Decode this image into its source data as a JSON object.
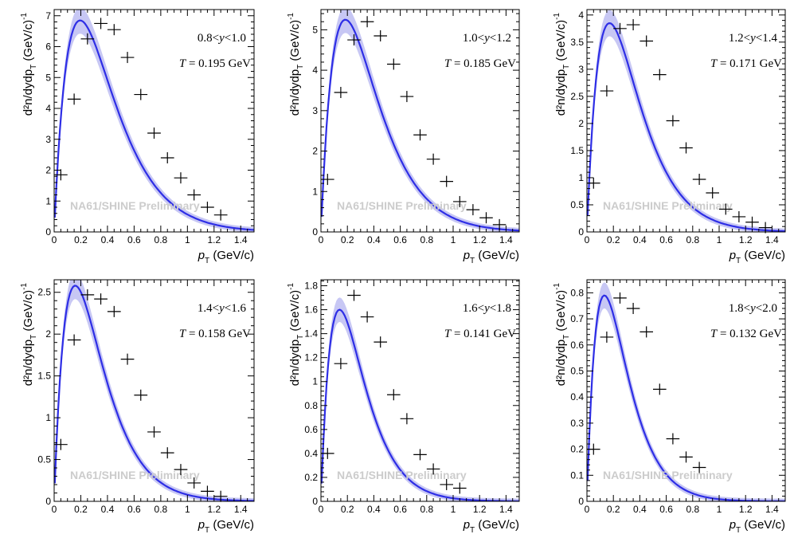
{
  "figure": {
    "watermark": "NA61/SHINE Preliminary",
    "xlabel_main": "p",
    "xlabel_sub": "T",
    "xlabel_unit": "(GeV/c)",
    "ylabel_main": "d²n/dydp",
    "ylabel_sub": "T",
    "ylabel_unit": "(GeV/c)",
    "ylabel_exp": "-1",
    "colors": {
      "fit": "#2e2ee6",
      "band": "#b4b4f0",
      "points": "#000000",
      "watermark": "#cccccc"
    }
  },
  "chart_data": [
    {
      "type": "scatter",
      "rapidity_label": "0.8<y<1.0",
      "temperature_label": "T = 0.195 GeV",
      "xlim": [
        0,
        1.5
      ],
      "ylim": [
        0,
        7.2
      ],
      "xticks": [
        0,
        0.2,
        0.4,
        0.6,
        0.8,
        1,
        1.2,
        1.4
      ],
      "yticks": [
        0,
        1,
        2,
        3,
        4,
        5,
        6,
        7
      ],
      "points_x": [
        0.05,
        0.15,
        0.25,
        0.35,
        0.45,
        0.55,
        0.65,
        0.75,
        0.85,
        0.95,
        1.05,
        1.15,
        1.25
      ],
      "points_y": [
        1.85,
        4.3,
        6.25,
        6.75,
        6.55,
        5.65,
        4.45,
        3.2,
        2.4,
        1.75,
        1.2,
        0.8,
        0.55
      ],
      "fit_T": 0.195,
      "fit_peak_y": 6.85
    },
    {
      "type": "scatter",
      "rapidity_label": "1.0<y<1.2",
      "temperature_label": "T = 0.185 GeV",
      "xlim": [
        0,
        1.5
      ],
      "ylim": [
        0,
        5.5
      ],
      "xticks": [
        0,
        0.2,
        0.4,
        0.6,
        0.8,
        1,
        1.2,
        1.4
      ],
      "yticks": [
        0,
        1,
        2,
        3,
        4,
        5
      ],
      "points_x": [
        0.05,
        0.15,
        0.25,
        0.35,
        0.45,
        0.55,
        0.65,
        0.75,
        0.85,
        0.95,
        1.05,
        1.15,
        1.25,
        1.35
      ],
      "points_y": [
        1.3,
        3.45,
        4.75,
        5.2,
        4.85,
        4.15,
        3.35,
        2.4,
        1.8,
        1.25,
        0.75,
        0.55,
        0.35,
        0.18
      ],
      "fit_T": 0.185,
      "fit_peak_y": 5.25
    },
    {
      "type": "scatter",
      "rapidity_label": "1.2<y<1.4",
      "temperature_label": "T = 0.171 GeV",
      "xlim": [
        0,
        1.5
      ],
      "ylim": [
        0,
        4.1
      ],
      "xticks": [
        0,
        0.2,
        0.4,
        0.6,
        0.8,
        1,
        1.2,
        1.4
      ],
      "yticks": [
        0,
        0.5,
        1,
        1.5,
        2,
        2.5,
        3,
        3.5,
        4
      ],
      "points_x": [
        0.05,
        0.15,
        0.25,
        0.35,
        0.45,
        0.55,
        0.65,
        0.75,
        0.85,
        0.95,
        1.05,
        1.15,
        1.25,
        1.35
      ],
      "points_y": [
        0.9,
        2.6,
        3.75,
        3.82,
        3.52,
        2.9,
        2.05,
        1.55,
        0.97,
        0.72,
        0.42,
        0.28,
        0.18,
        0.08
      ],
      "fit_T": 0.171,
      "fit_peak_y": 3.85
    },
    {
      "type": "scatter",
      "rapidity_label": "1.4<y<1.6",
      "temperature_label": "T = 0.158 GeV",
      "xlim": [
        0,
        1.5
      ],
      "ylim": [
        0,
        2.65
      ],
      "xticks": [
        0,
        0.2,
        0.4,
        0.6,
        0.8,
        1,
        1.2,
        1.4
      ],
      "yticks": [
        0,
        0.5,
        1,
        1.5,
        2,
        2.5
      ],
      "points_x": [
        0.05,
        0.15,
        0.25,
        0.35,
        0.45,
        0.55,
        0.65,
        0.75,
        0.85,
        0.95,
        1.05,
        1.15,
        1.25
      ],
      "points_y": [
        0.68,
        1.93,
        2.47,
        2.42,
        2.27,
        1.7,
        1.27,
        0.83,
        0.58,
        0.38,
        0.22,
        0.12,
        0.06
      ],
      "fit_T": 0.158,
      "fit_peak_y": 2.58
    },
    {
      "type": "scatter",
      "rapidity_label": "1.6<y<1.8",
      "temperature_label": "T = 0.141 GeV",
      "xlim": [
        0,
        1.5
      ],
      "ylim": [
        0,
        1.85
      ],
      "xticks": [
        0,
        0.2,
        0.4,
        0.6,
        0.8,
        1,
        1.2,
        1.4
      ],
      "yticks": [
        0,
        0.2,
        0.4,
        0.6,
        0.8,
        1,
        1.2,
        1.4,
        1.6,
        1.8
      ],
      "points_x": [
        0.05,
        0.15,
        0.25,
        0.35,
        0.45,
        0.55,
        0.65,
        0.75,
        0.85,
        0.95,
        1.05
      ],
      "points_y": [
        0.4,
        1.15,
        1.72,
        1.54,
        1.33,
        0.89,
        0.69,
        0.39,
        0.27,
        0.14,
        0.11
      ],
      "fit_T": 0.141,
      "fit_peak_y": 1.6
    },
    {
      "type": "scatter",
      "rapidity_label": "1.8<y<2.0",
      "temperature_label": "T = 0.132 GeV",
      "xlim": [
        0,
        1.5
      ],
      "ylim": [
        0,
        0.85
      ],
      "xticks": [
        0,
        0.2,
        0.4,
        0.6,
        0.8,
        1,
        1.2,
        1.4
      ],
      "yticks": [
        0,
        0.1,
        0.2,
        0.3,
        0.4,
        0.5,
        0.6,
        0.7,
        0.8
      ],
      "points_x": [
        0.05,
        0.15,
        0.25,
        0.35,
        0.45,
        0.55,
        0.65,
        0.75,
        0.85
      ],
      "points_y": [
        0.2,
        0.63,
        0.78,
        0.74,
        0.65,
        0.43,
        0.24,
        0.17,
        0.13
      ],
      "fit_T": 0.132,
      "fit_peak_y": 0.79
    }
  ]
}
